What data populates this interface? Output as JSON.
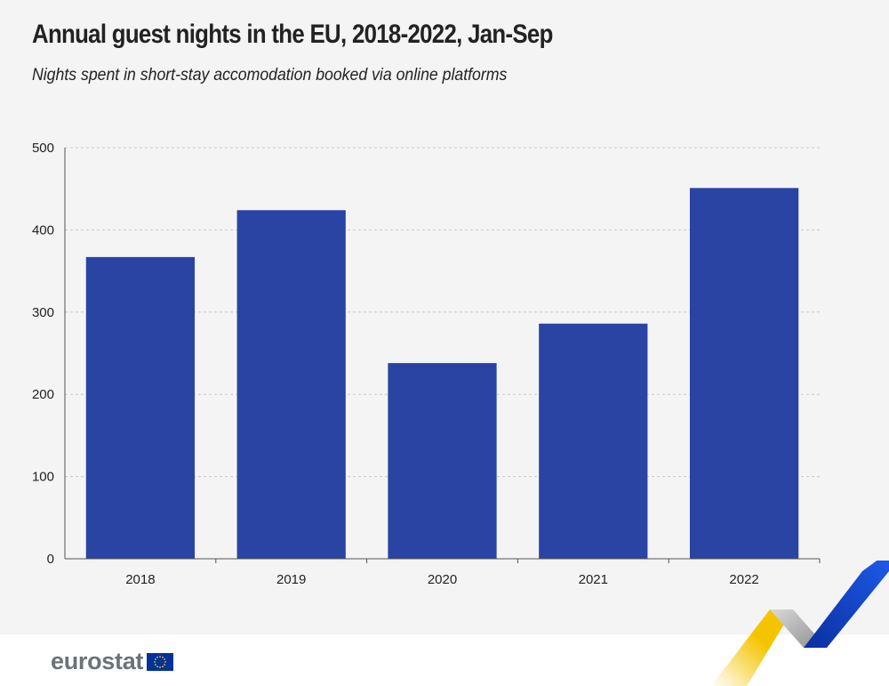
{
  "chart_data": {
    "type": "bar",
    "title": "Annual guest nights in the EU, 2018-2022, Jan-Sep",
    "subtitle": "Nights spent in short-stay accomodation booked via online platforms",
    "categories": [
      "2018",
      "2019",
      "2020",
      "2021",
      "2022"
    ],
    "values": [
      367,
      424,
      238,
      286,
      451
    ],
    "ylim": [
      0,
      500
    ],
    "yticks": [
      0,
      100,
      200,
      300,
      400,
      500
    ],
    "xlabel": "",
    "ylabel": "",
    "grid": "horizontal dashed",
    "legend": "none",
    "bar_color": "#2a44a4"
  },
  "branding": {
    "logo_text": "eurostat",
    "logo_icon": "eu-flag-icon"
  },
  "colors": {
    "background": "#f4f4f5",
    "bar": "#2a44a4",
    "accent_yellow": "#f5c400",
    "accent_blue": "#0e47cb",
    "accent_grey": "#b8b8b8"
  }
}
